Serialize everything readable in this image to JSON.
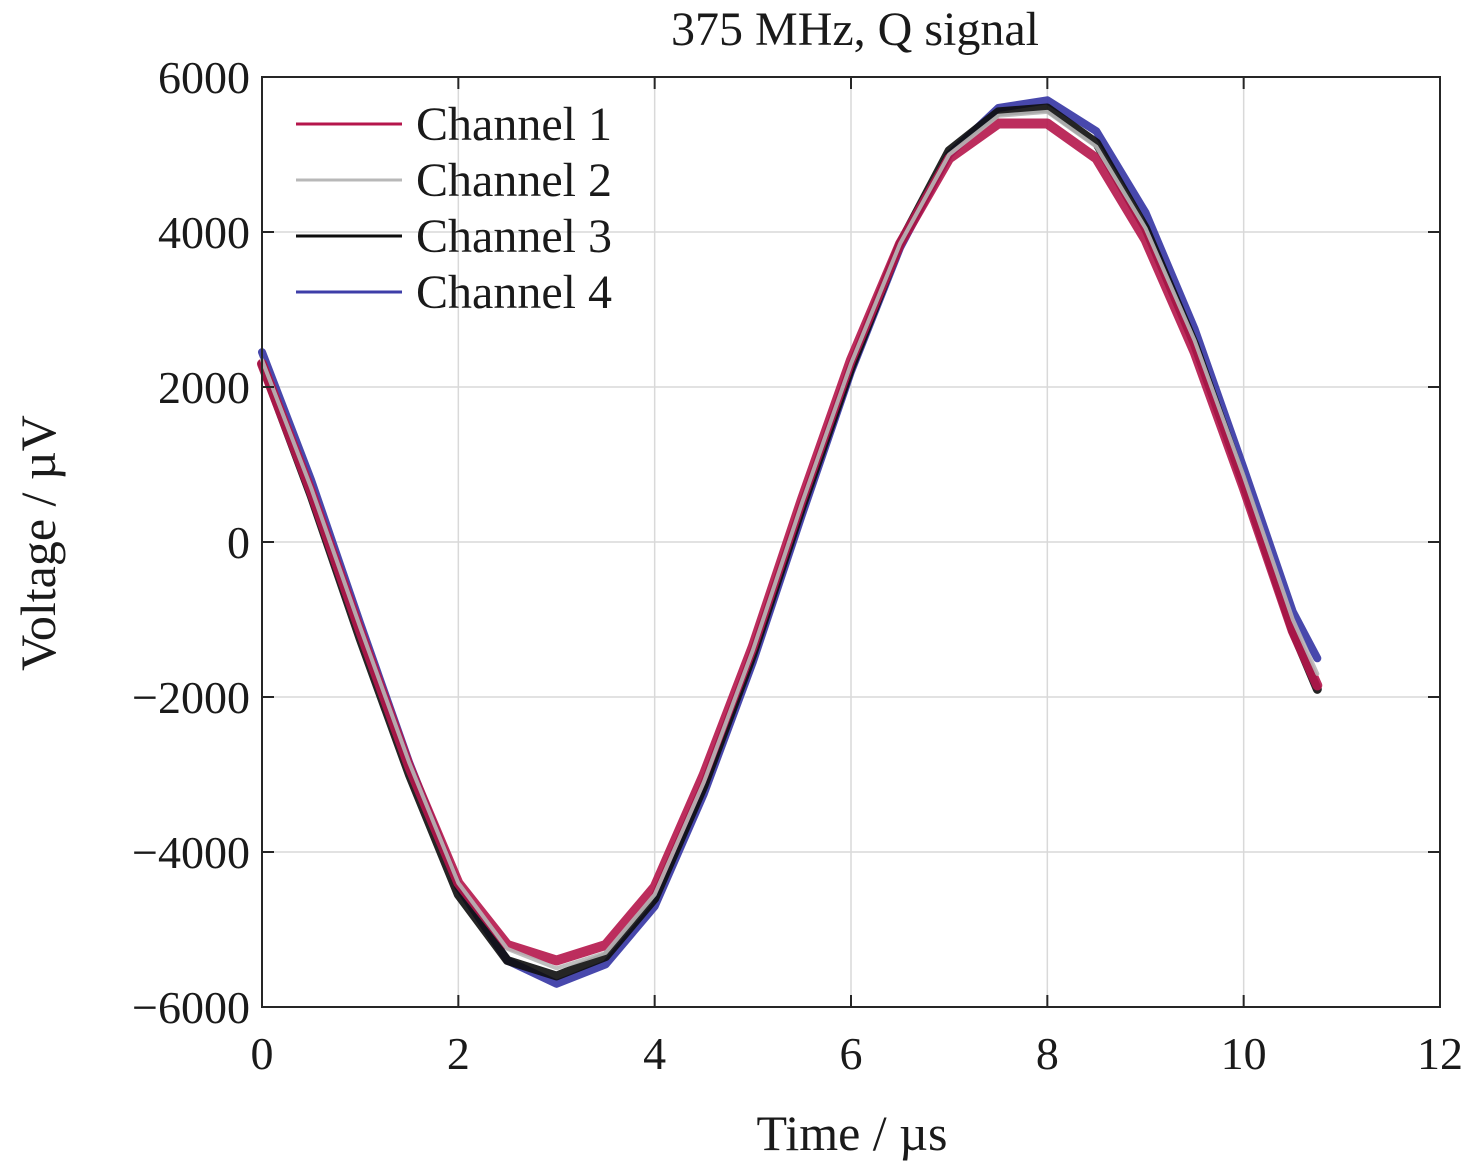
{
  "chart_data": {
    "type": "line",
    "title": "375 MHz, Q signal",
    "xlabel": "Time / µs",
    "ylabel": "Voltage / µV",
    "xlim": [
      0,
      12
    ],
    "ylim": [
      -6000,
      6000
    ],
    "xticks": [
      0,
      2,
      4,
      6,
      8,
      10,
      12
    ],
    "yticks": [
      -6000,
      -4000,
      -2000,
      0,
      2000,
      4000,
      6000
    ],
    "xtick_labels": [
      "0",
      "2",
      "4",
      "6",
      "8",
      "10",
      "12"
    ],
    "ytick_labels": [
      "−6000",
      "−4000",
      "−2000",
      "0",
      "2000",
      "4000",
      "6000"
    ],
    "grid": true,
    "legend_position": "top-left",
    "series": [
      {
        "name": "Channel 1",
        "color": "#b5164b",
        "x": [
          0,
          0.5,
          1.0,
          1.5,
          2.0,
          2.5,
          3.0,
          3.5,
          4.0,
          4.5,
          5.0,
          5.5,
          6.0,
          6.5,
          7.0,
          7.5,
          8.0,
          8.5,
          9.0,
          9.5,
          10.0,
          10.5,
          10.75
        ],
        "y": [
          2300,
          650,
          -1150,
          -2900,
          -4400,
          -5200,
          -5400,
          -5200,
          -4450,
          -3000,
          -1350,
          550,
          2350,
          3850,
          4950,
          5400,
          5400,
          4950,
          3900,
          2450,
          700,
          -1150,
          -1850
        ]
      },
      {
        "name": "Channel 2",
        "color": "#b8b8b8",
        "x": [
          0,
          0.5,
          1.0,
          1.5,
          2.0,
          2.5,
          3.0,
          3.5,
          4.0,
          4.5,
          5.0,
          5.5,
          6.0,
          6.5,
          7.0,
          7.5,
          8.0,
          8.5,
          9.0,
          9.5,
          10.0,
          10.5,
          10.75
        ],
        "y": [
          2350,
          700,
          -1100,
          -2850,
          -4400,
          -5250,
          -5500,
          -5300,
          -4550,
          -3100,
          -1400,
          500,
          2300,
          3850,
          5000,
          5500,
          5550,
          5100,
          4050,
          2600,
          850,
          -1000,
          -1700
        ]
      },
      {
        "name": "Channel 3",
        "color": "#0d0d0d",
        "x": [
          0,
          0.5,
          1.0,
          1.5,
          2.0,
          2.5,
          3.0,
          3.5,
          4.0,
          4.5,
          5.0,
          5.5,
          6.0,
          6.5,
          7.0,
          7.5,
          8.0,
          8.5,
          9.0,
          9.5,
          10.0,
          10.5,
          10.75
        ],
        "y": [
          2300,
          600,
          -1250,
          -3000,
          -4550,
          -5400,
          -5600,
          -5350,
          -4600,
          -3150,
          -1450,
          450,
          2250,
          3850,
          5050,
          5550,
          5600,
          5150,
          4050,
          2550,
          750,
          -1150,
          -1900
        ]
      },
      {
        "name": "Channel 4",
        "color": "#3e3ea8",
        "x": [
          0,
          0.5,
          1.0,
          1.5,
          2.0,
          2.5,
          3.0,
          3.5,
          4.0,
          4.5,
          5.0,
          5.5,
          6.0,
          6.5,
          7.0,
          7.5,
          8.0,
          8.5,
          9.0,
          9.5,
          10.0,
          10.5,
          10.75
        ],
        "y": [
          2450,
          800,
          -1050,
          -2850,
          -4450,
          -5400,
          -5700,
          -5450,
          -4700,
          -3250,
          -1550,
          350,
          2200,
          3800,
          5000,
          5600,
          5700,
          5300,
          4250,
          2750,
          950,
          -900,
          -1500
        ]
      }
    ]
  }
}
